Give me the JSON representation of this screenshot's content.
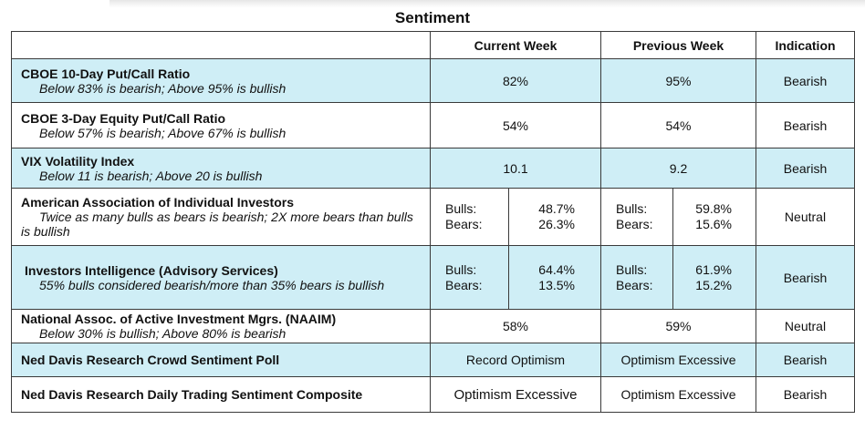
{
  "title": "Sentiment",
  "headers": {
    "blank": "",
    "current": "Current Week",
    "previous": "Previous Week",
    "indication": "Indication"
  },
  "rows": [
    {
      "name": "CBOE 10-Day Put/Call Ratio",
      "sub": "Below 83% is bearish; Above 95% is bullish",
      "current": "82%",
      "previous": "95%",
      "indication": "Bearish"
    },
    {
      "name": "CBOE 3-Day Equity Put/Call Ratio",
      "sub": "Below 57% is bearish; Above 67% is bullish",
      "current": "54%",
      "previous": "54%",
      "indication": "Bearish"
    },
    {
      "name": "VIX Volatility Index",
      "sub": "Below 11 is bearish; Above 20 is bullish",
      "current": "10.1",
      "previous": "9.2",
      "indication": "Bearish"
    },
    {
      "name": "American Association of Individual Investors",
      "sub": "Twice as many bulls as bears is bearish; 2X more bears than bulls is bullish",
      "bulls_label": "Bulls:",
      "bears_label": "Bears:",
      "current_bulls": "48.7%",
      "current_bears": "26.3%",
      "previous_bulls": "59.8%",
      "previous_bears": "15.6%",
      "indication": "Neutral"
    },
    {
      "name": "Investors Intelligence (Advisory Services)",
      "sub": "55% bulls considered bearish/more than 35% bears is bullish",
      "bulls_label": "Bulls:",
      "bears_label": "Bears:",
      "current_bulls": "64.4%",
      "current_bears": "13.5%",
      "previous_bulls": "61.9%",
      "previous_bears": "15.2%",
      "indication": "Bearish"
    },
    {
      "name": "National Assoc. of Active Investment Mgrs. (NAAIM)",
      "sub": "Below 30% is bullish; Above 80% is bearish",
      "current": "58%",
      "previous": "59%",
      "indication": "Neutral"
    },
    {
      "name": "Ned Davis Research Crowd Sentiment Poll",
      "current": "Record Optimism",
      "previous": "Optimism Excessive",
      "indication": "Bearish"
    },
    {
      "name": "Ned Davis Research Daily Trading Sentiment Composite",
      "current": "Optimism Excessive",
      "previous": "Optimism Excessive",
      "indication": "Bearish"
    }
  ],
  "colors": {
    "shaded_row": "#cfeef6",
    "border": "#3a3a3a"
  }
}
